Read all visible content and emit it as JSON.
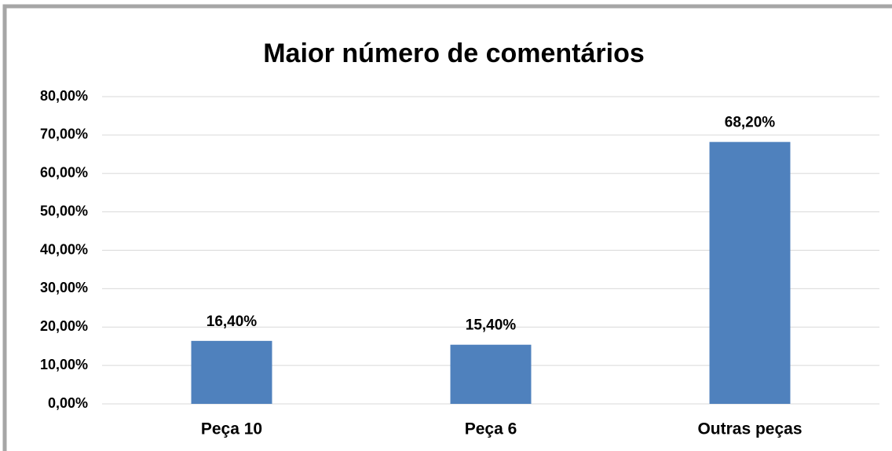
{
  "chart_data": {
    "type": "bar",
    "title": "Maior número de comentários",
    "categories": [
      "Peça 10",
      "Peça 6",
      "Outras peças"
    ],
    "values": [
      16.4,
      15.4,
      68.2
    ],
    "value_labels": [
      "16,40%",
      "15,40%",
      "68,20%"
    ],
    "color": "#4f81bd",
    "ylim": [
      0,
      80
    ],
    "yticks": [
      {
        "value": 0,
        "label": "0,00%"
      },
      {
        "value": 10,
        "label": "10,00%"
      },
      {
        "value": 20,
        "label": "20,00%"
      },
      {
        "value": 30,
        "label": "30,00%"
      },
      {
        "value": 40,
        "label": "40,00%"
      },
      {
        "value": 50,
        "label": "50,00%"
      },
      {
        "value": 60,
        "label": "60,00%"
      },
      {
        "value": 70,
        "label": "70,00%"
      },
      {
        "value": 80,
        "label": "80,00%"
      }
    ],
    "grid": true
  }
}
